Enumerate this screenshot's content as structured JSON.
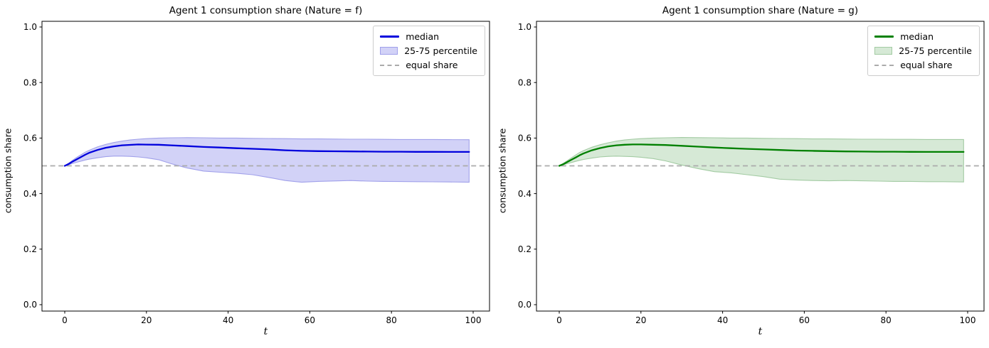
{
  "figure": {
    "background": "#ffffff"
  },
  "chart_data": [
    {
      "type": "line",
      "title": "Agent 1 consumption share (Nature = f)",
      "xlabel": "t",
      "ylabel": "consumption share",
      "xlim": [
        -5.6,
        104
      ],
      "ylim": [
        -0.023,
        1.023
      ],
      "xticks": [
        0,
        20,
        40,
        60,
        80,
        100
      ],
      "ytick_labels": [
        "0.0",
        "0.2",
        "0.4",
        "0.6",
        "0.8",
        "1.0"
      ],
      "ytick_values": [
        0.0,
        0.2,
        0.4,
        0.6,
        0.8,
        1.0
      ],
      "grid": false,
      "legend_position": "upper right",
      "legend": {
        "median": "median",
        "band": "25-75 percentile",
        "equal": "equal share"
      },
      "equal_share_value": 0.5,
      "colors": {
        "median": "#0000dd",
        "band_fill": "#d2d2f7",
        "band_edge": "#a0a0ea",
        "equal_share": "#ababab",
        "spine": "#000000"
      },
      "x": [
        0,
        1,
        2,
        3,
        4,
        5,
        6,
        8,
        10,
        12,
        14,
        16,
        18,
        20,
        23,
        26,
        30,
        34,
        38,
        42,
        46,
        50,
        54,
        58,
        62,
        66,
        70,
        74,
        78,
        82,
        86,
        90,
        94,
        99
      ],
      "series": [
        {
          "name": "median",
          "values": [
            0.5,
            0.507,
            0.516,
            0.524,
            0.532,
            0.54,
            0.547,
            0.557,
            0.565,
            0.57,
            0.574,
            0.5755,
            0.577,
            0.5765,
            0.576,
            0.574,
            0.571,
            0.568,
            0.566,
            0.5635,
            0.5615,
            0.559,
            0.556,
            0.554,
            0.553,
            0.5525,
            0.552,
            0.5515,
            0.551,
            0.551,
            0.5505,
            0.5505,
            0.55,
            0.55
          ]
        },
        {
          "name": "p75",
          "values": [
            0.5,
            0.51,
            0.521,
            0.531,
            0.54,
            0.549,
            0.556,
            0.568,
            0.577,
            0.584,
            0.589,
            0.593,
            0.596,
            0.598,
            0.6,
            0.601,
            0.6015,
            0.601,
            0.6,
            0.6,
            0.599,
            0.5985,
            0.598,
            0.597,
            0.597,
            0.5965,
            0.596,
            0.596,
            0.5955,
            0.595,
            0.595,
            0.595,
            0.5945,
            0.594
          ]
        },
        {
          "name": "p25",
          "values": [
            0.5,
            0.504,
            0.509,
            0.513,
            0.517,
            0.521,
            0.524,
            0.529,
            0.533,
            0.535,
            0.535,
            0.534,
            0.532,
            0.529,
            0.522,
            0.508,
            0.492,
            0.481,
            0.477,
            0.4735,
            0.468,
            0.458,
            0.447,
            0.441,
            0.444,
            0.4455,
            0.447,
            0.445,
            0.444,
            0.4435,
            0.443,
            0.4425,
            0.442,
            0.441
          ]
        }
      ]
    },
    {
      "type": "line",
      "title": "Agent 1 consumption share (Nature = g)",
      "xlabel": "t",
      "ylabel": "consumption share",
      "xlim": [
        -5.6,
        104
      ],
      "ylim": [
        -0.023,
        1.023
      ],
      "xticks": [
        0,
        20,
        40,
        60,
        80,
        100
      ],
      "ytick_labels": [
        "0.0",
        "0.2",
        "0.4",
        "0.6",
        "0.8",
        "1.0"
      ],
      "ytick_values": [
        0.0,
        0.2,
        0.4,
        0.6,
        0.8,
        1.0
      ],
      "grid": false,
      "legend_position": "upper right",
      "legend": {
        "median": "median",
        "band": "25-75 percentile",
        "equal": "equal share"
      },
      "equal_share_value": 0.5,
      "colors": {
        "median": "#008000",
        "band_fill": "#d6e9d6",
        "band_edge": "#a3cba3",
        "equal_share": "#ababab",
        "spine": "#000000"
      },
      "x": [
        0,
        1,
        2,
        3,
        4,
        5,
        6,
        8,
        10,
        12,
        14,
        16,
        18,
        20,
        23,
        26,
        30,
        34,
        38,
        42,
        46,
        50,
        54,
        58,
        62,
        66,
        70,
        74,
        78,
        82,
        86,
        90,
        94,
        99
      ],
      "series": [
        {
          "name": "median",
          "values": [
            0.5,
            0.506,
            0.514,
            0.522,
            0.53,
            0.538,
            0.545,
            0.556,
            0.564,
            0.57,
            0.574,
            0.576,
            0.577,
            0.577,
            0.576,
            0.575,
            0.572,
            0.569,
            0.566,
            0.5635,
            0.561,
            0.559,
            0.557,
            0.555,
            0.554,
            0.553,
            0.552,
            0.5515,
            0.551,
            0.551,
            0.5505,
            0.55,
            0.55,
            0.55
          ]
        },
        {
          "name": "p75",
          "values": [
            0.5,
            0.509,
            0.519,
            0.529,
            0.539,
            0.548,
            0.555,
            0.567,
            0.576,
            0.583,
            0.589,
            0.593,
            0.596,
            0.598,
            0.6,
            0.601,
            0.602,
            0.6015,
            0.601,
            0.6,
            0.6,
            0.599,
            0.5985,
            0.598,
            0.597,
            0.597,
            0.5965,
            0.596,
            0.596,
            0.5955,
            0.5955,
            0.595,
            0.595,
            0.595
          ]
        },
        {
          "name": "p25",
          "values": [
            0.5,
            0.504,
            0.508,
            0.512,
            0.516,
            0.52,
            0.523,
            0.528,
            0.532,
            0.534,
            0.535,
            0.534,
            0.533,
            0.531,
            0.526,
            0.518,
            0.503,
            0.49,
            0.479,
            0.475,
            0.468,
            0.461,
            0.452,
            0.449,
            0.447,
            0.446,
            0.447,
            0.446,
            0.445,
            0.444,
            0.444,
            0.443,
            0.443,
            0.442
          ]
        }
      ]
    }
  ]
}
